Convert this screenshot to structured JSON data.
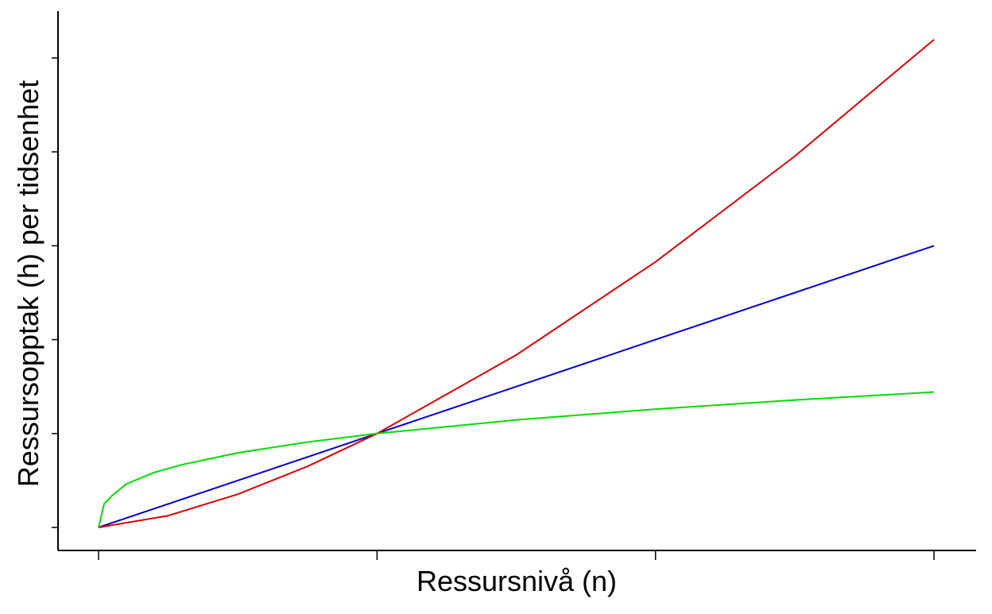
{
  "chart_data": {
    "type": "line",
    "title": "",
    "xlabel": "Ressursnivå (n)",
    "ylabel": "Ressursopptak (h) per tidsenhet",
    "xlim": [
      0,
      3
    ],
    "ylim": [
      0,
      5
    ],
    "x_ticks": [
      0,
      1,
      2,
      3
    ],
    "y_ticks": [
      0,
      1,
      2,
      3,
      4,
      5
    ],
    "x_tick_labels": [],
    "y_tick_labels": [],
    "grid": false,
    "legend": "none",
    "series": [
      {
        "color": "#0000CD",
        "x": [
          0,
          0.5,
          1,
          1.5,
          2,
          2.5,
          3
        ],
        "y": [
          0,
          0.5,
          1,
          1.5,
          2,
          2.5,
          3
        ]
      },
      {
        "color": "#DD0000",
        "x": [
          0,
          0.25,
          0.5,
          0.75,
          1,
          1.5,
          2,
          2.5,
          3
        ],
        "y": [
          0,
          0.125,
          0.354,
          0.65,
          1,
          1.837,
          2.828,
          3.953,
          5.196
        ]
      },
      {
        "color": "#00DD00",
        "x": [
          0,
          0.02,
          0.05,
          0.1,
          0.2,
          0.3,
          0.5,
          0.75,
          1,
          1.5,
          2,
          2.5,
          3
        ],
        "y": [
          0,
          0.252,
          0.342,
          0.464,
          0.585,
          0.669,
          0.794,
          0.909,
          1,
          1.145,
          1.26,
          1.357,
          1.442
        ]
      }
    ]
  }
}
